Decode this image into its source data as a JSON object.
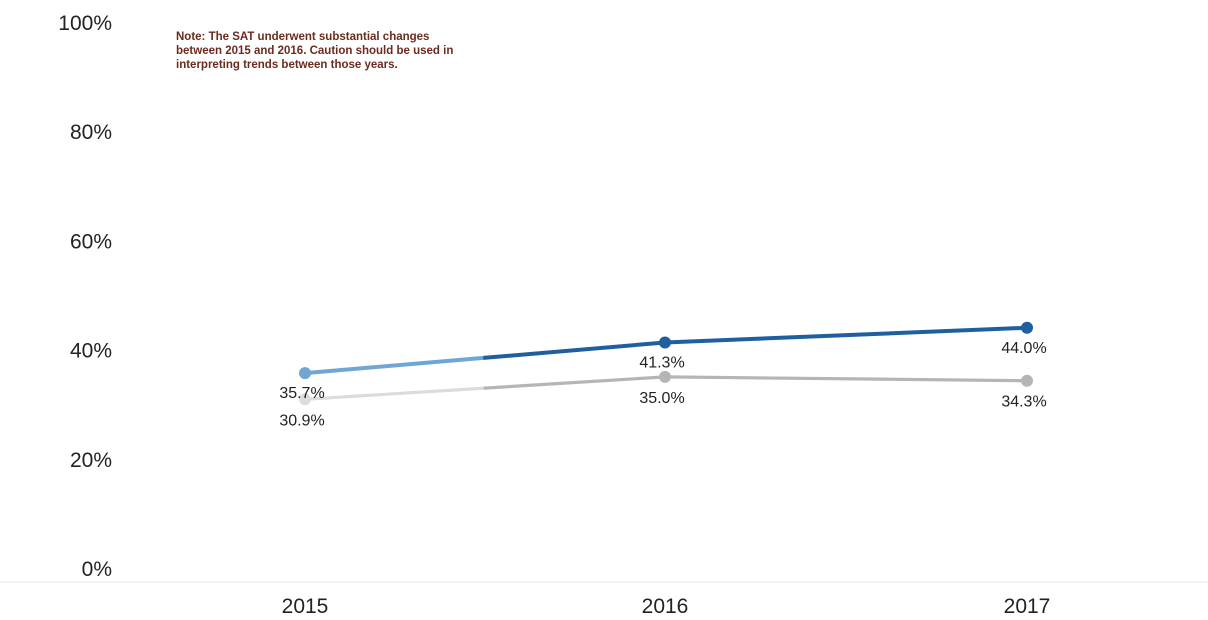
{
  "note": "Note: The SAT underwent substantial changes between 2015 and 2016. Caution should be used in interpreting trends between those years.",
  "chart_data": {
    "type": "line",
    "x": [
      "2015",
      "2016",
      "2017"
    ],
    "series": [
      {
        "values": [
          35.7,
          41.3,
          44.0
        ],
        "labels": [
          "35.7%",
          "41.3%",
          "44.0%"
        ],
        "color": "#1f5f9e",
        "faded_color": "#6fa6d3"
      },
      {
        "values": [
          30.9,
          35.0,
          34.3
        ],
        "labels": [
          "30.9%",
          "35.0%",
          "34.3%"
        ],
        "color": "#b5b5b5",
        "faded_color": "#dcdcdc"
      }
    ],
    "ylim": [
      0,
      100
    ],
    "yticks": [
      0,
      20,
      40,
      60,
      80,
      100
    ],
    "ytick_labels": [
      "0%",
      "20%",
      "40%",
      "60%",
      "80%",
      "100%"
    ],
    "grid": false,
    "title": "",
    "xlabel": "",
    "ylabel": ""
  }
}
